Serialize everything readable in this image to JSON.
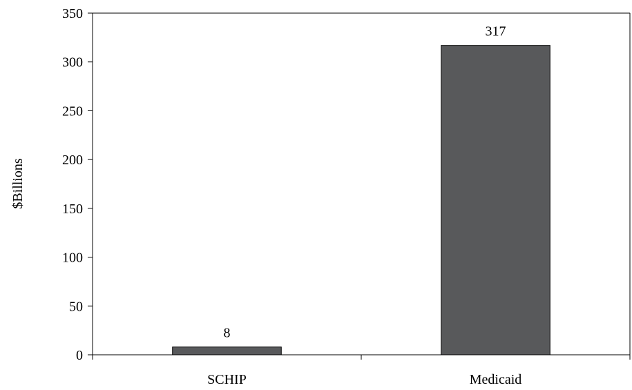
{
  "chart_data": {
    "type": "bar",
    "title": "",
    "xlabel": "",
    "ylabel": "$Billions",
    "categories": [
      "SCHIP",
      "Medicaid"
    ],
    "values": [
      8,
      317
    ],
    "data_labels": [
      "8",
      "317"
    ],
    "ylim": [
      0,
      350
    ],
    "yticks": [
      0,
      50,
      100,
      150,
      200,
      250,
      300,
      350
    ],
    "ytick_labels": [
      "0",
      "50",
      "100",
      "150",
      "200",
      "250",
      "300",
      "350"
    ],
    "grid": false,
    "legend": "none",
    "bar_color": "#58595b",
    "bar_edge_color": "#000000"
  }
}
